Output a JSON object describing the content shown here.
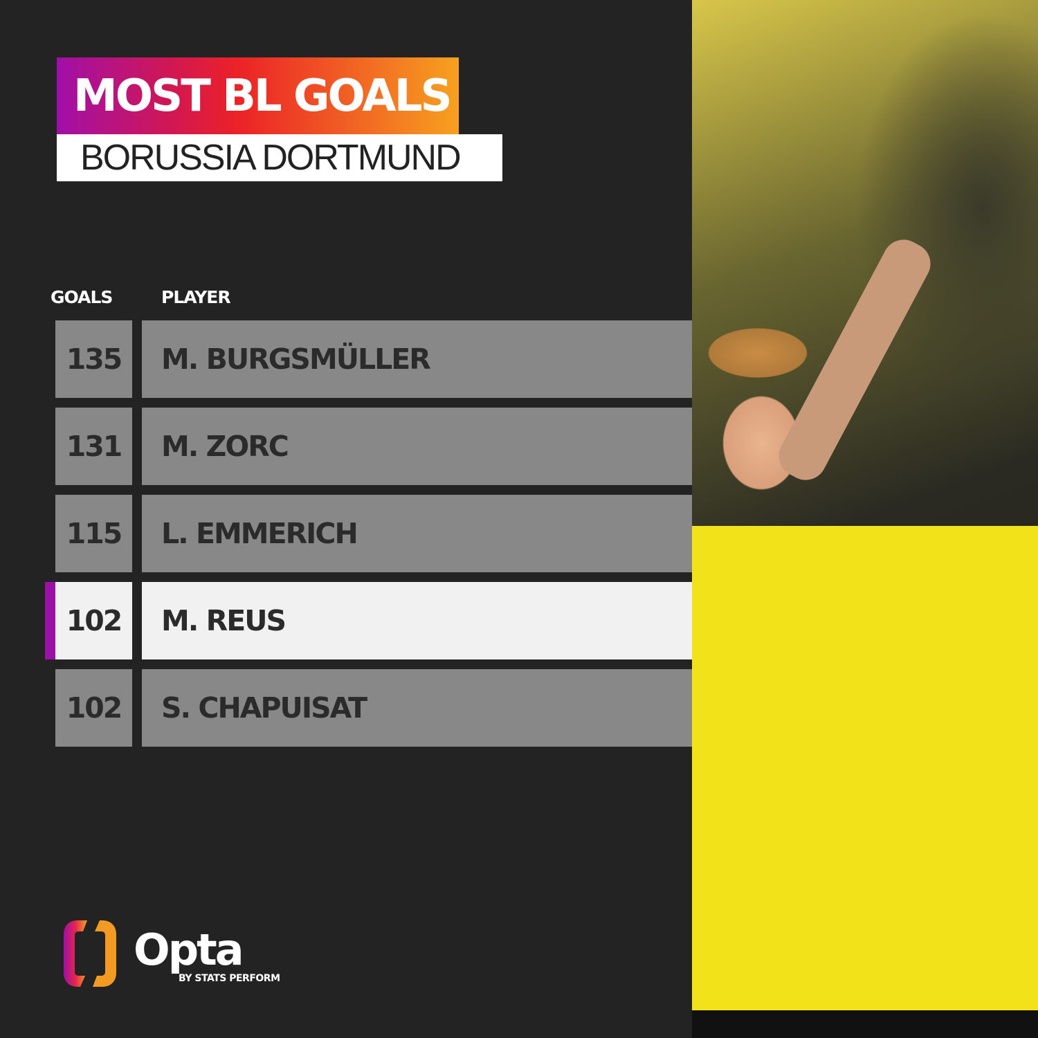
{
  "title": "MOST BL GOALS",
  "subtitle": "BORUSSIA DORTMUND",
  "colors": {
    "background": "#232323",
    "gradient_start": "#a10fa8",
    "gradient_mid": "#ec2227",
    "gradient_end": "#f7a11f",
    "row": "#888888",
    "highlight_row": "#f1f1f1",
    "highlight_marker": "#9b11a6"
  },
  "chart_data": {
    "type": "table",
    "columns": [
      "GOALS",
      "PLAYER"
    ],
    "rows": [
      {
        "goals": "135",
        "player": "M. BURGSMÜLLER",
        "highlighted": false
      },
      {
        "goals": "131",
        "player": "M. ZORC",
        "highlighted": false
      },
      {
        "goals": "115",
        "player": "L. EMMERICH",
        "highlighted": false
      },
      {
        "goals": "102",
        "player": "M. REUS",
        "highlighted": true
      },
      {
        "goals": "102",
        "player": "S. CHAPUISAT",
        "highlighted": false
      }
    ]
  },
  "logo": {
    "name": "Opta",
    "tagline": "BY STATS PERFORM",
    "icon": "opta-logo-icon"
  }
}
